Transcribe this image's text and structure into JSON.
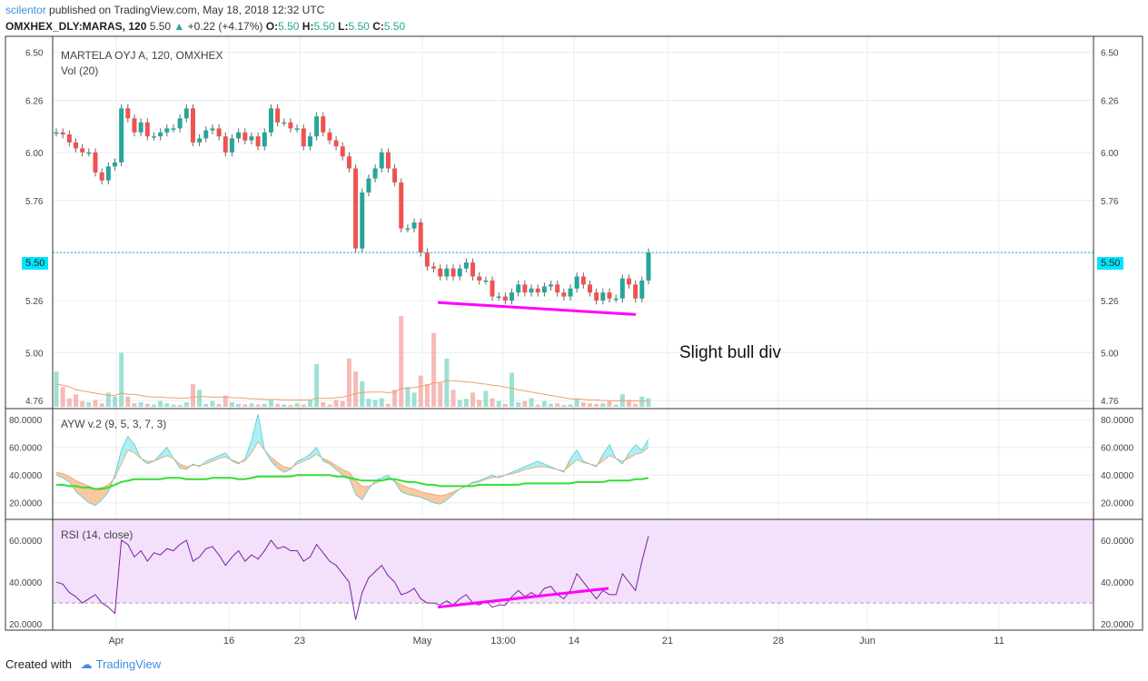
{
  "header": {
    "author": "scilentor",
    "published": "published on TradingView.com, May 18, 2018 12:32 UTC",
    "symbol": "OMXHEX_DLY:MARAS, 120",
    "last": "5.50",
    "change": "+0.22 (+4.17%)",
    "o_label": "O:",
    "o": "5.50",
    "h_label": "H:",
    "h": "5.50",
    "l_label": "L:",
    "l": "5.50",
    "c_label": "C:",
    "c": "5.50"
  },
  "main_pane": {
    "title": "MARTELA OYJ A, 120, OMXHEX",
    "vol_label": "Vol (20)",
    "current_price_tag": "5.50",
    "annotation": "Slight bull div"
  },
  "ayw_pane": {
    "title": "AYW v.2 (9, 5, 3, 7, 3)"
  },
  "rsi_pane": {
    "title": "RSI (14, close)"
  },
  "footer": {
    "created_with": "Created with",
    "brand": "TradingView"
  },
  "colors": {
    "up": "#26a69a",
    "down": "#ef5350",
    "up_fill": "#7fd6c4",
    "down_fill": "#f4a39f",
    "price_line": "#00bcd4",
    "annotation": "#ff00ff",
    "rsi_line": "#7b1fa2",
    "rsi_band": "#f3e0fb",
    "ayw_up_fill": "#aeeef5",
    "ayw_down_fill": "#f8c8a0",
    "ayw_signal": "#33dd33",
    "vol_ma": "#f0a070"
  },
  "chart_data": [
    {
      "type": "candlestick",
      "title": "MARTELA OYJ A, 120, OMXHEX",
      "x_ticks": [
        "Apr",
        "16",
        "23",
        "May",
        "13:00",
        "14",
        "21",
        "28",
        "Jun",
        "11"
      ],
      "y_ticks": [
        "6.50",
        "6.26",
        "6.00",
        "5.76",
        "5.50",
        "5.26",
        "5.00",
        "4.76"
      ],
      "ylim": [
        4.72,
        6.58
      ],
      "last_price": 5.5,
      "close_series": [
        6.1,
        6.09,
        6.05,
        6.02,
        6.0,
        6.0,
        5.9,
        5.86,
        5.93,
        5.95,
        6.22,
        6.17,
        6.1,
        6.15,
        6.08,
        6.08,
        6.1,
        6.12,
        6.12,
        6.17,
        6.22,
        6.05,
        6.07,
        6.11,
        6.12,
        6.08,
        6.0,
        6.07,
        6.1,
        6.06,
        6.08,
        6.03,
        6.1,
        6.22,
        6.15,
        6.15,
        6.12,
        6.12,
        6.03,
        6.08,
        6.18,
        6.1,
        6.06,
        6.03,
        5.98,
        5.92,
        5.52,
        5.8,
        5.87,
        5.92,
        6.0,
        5.92,
        5.85,
        5.62,
        5.62,
        5.65,
        5.5,
        5.43,
        5.42,
        5.38,
        5.42,
        5.38,
        5.42,
        5.45,
        5.38,
        5.36,
        5.36,
        5.28,
        5.28,
        5.26,
        5.3,
        5.34,
        5.3,
        5.32,
        5.3,
        5.33,
        5.34,
        5.3,
        5.28,
        5.32,
        5.38,
        5.34,
        5.3,
        5.26,
        5.3,
        5.27,
        5.27,
        5.37,
        5.34,
        5.27,
        5.36,
        5.5
      ],
      "annotation_line": {
        "from_date": "May 2",
        "from": 5.25,
        "to_date": "May 17",
        "to": 5.19
      }
    },
    {
      "type": "bar",
      "title": "Vol (20)",
      "values": [
        0.62,
        0.35,
        0.15,
        0.22,
        0.1,
        0.08,
        0.12,
        0.06,
        0.25,
        0.18,
        0.95,
        0.18,
        0.06,
        0.08,
        0.05,
        0.04,
        0.1,
        0.06,
        0.04,
        0.03,
        0.08,
        0.4,
        0.3,
        0.05,
        0.1,
        0.05,
        0.2,
        0.08,
        0.05,
        0.04,
        0.06,
        0.04,
        0.05,
        0.12,
        0.05,
        0.04,
        0.03,
        0.06,
        0.04,
        0.12,
        0.75,
        0.08,
        0.04,
        0.12,
        0.1,
        0.85,
        0.62,
        0.45,
        0.14,
        0.12,
        0.15,
        0.05,
        0.3,
        1.6,
        0.35,
        0.25,
        0.55,
        0.4,
        1.3,
        0.42,
        0.85,
        0.3,
        0.12,
        0.14,
        0.25,
        0.12,
        0.28,
        0.15,
        0.1,
        0.05,
        0.6,
        0.08,
        0.1,
        0.15,
        0.04,
        0.1,
        0.05,
        0.06,
        0.03,
        0.04,
        0.14,
        0.08,
        0.06,
        0.05,
        0.06,
        0.1,
        0.04,
        0.22,
        0.12,
        0.05,
        0.18,
        0.15
      ],
      "ma": [
        0.4,
        0.38,
        0.35,
        0.3,
        0.28,
        0.26,
        0.24,
        0.22,
        0.2,
        0.2,
        0.24,
        0.22,
        0.22,
        0.2,
        0.18,
        0.17,
        0.17,
        0.16,
        0.16,
        0.15,
        0.15,
        0.17,
        0.18,
        0.18,
        0.17,
        0.17,
        0.17,
        0.16,
        0.16,
        0.15,
        0.14,
        0.14,
        0.13,
        0.13,
        0.13,
        0.12,
        0.12,
        0.12,
        0.12,
        0.12,
        0.15,
        0.15,
        0.15,
        0.16,
        0.17,
        0.2,
        0.23,
        0.25,
        0.26,
        0.26,
        0.26,
        0.25,
        0.26,
        0.32,
        0.33,
        0.34,
        0.36,
        0.38,
        0.42,
        0.43,
        0.46,
        0.46,
        0.45,
        0.44,
        0.43,
        0.41,
        0.4,
        0.38,
        0.37,
        0.34,
        0.33,
        0.3,
        0.28,
        0.26,
        0.24,
        0.22,
        0.2,
        0.18,
        0.16,
        0.14,
        0.14,
        0.13,
        0.12,
        0.12,
        0.11,
        0.11,
        0.1,
        0.11,
        0.11,
        0.1,
        0.1,
        0.1
      ]
    },
    {
      "type": "area",
      "title": "AYW v.2 (9, 5, 3, 7, 3)",
      "y_ticks": [
        "80.0000",
        "60.0000",
        "40.0000",
        "20.0000"
      ],
      "ylim": [
        8,
        88
      ],
      "series": [
        {
          "values": [
            40,
            38,
            35,
            28,
            24,
            20,
            18,
            22,
            28,
            40,
            58,
            68,
            62,
            52,
            48,
            50,
            55,
            60,
            52,
            45,
            44,
            48,
            46,
            50,
            52,
            54,
            56,
            50,
            48,
            52,
            65,
            84,
            58,
            50,
            45,
            42,
            44,
            50,
            52,
            55,
            60,
            50,
            48,
            44,
            40,
            38,
            26,
            22,
            30,
            36,
            38,
            40,
            35,
            28,
            26,
            25,
            24,
            22,
            20,
            19,
            22,
            26,
            30,
            32,
            35,
            36,
            38,
            40,
            38,
            40,
            42,
            44,
            46,
            48,
            50,
            48,
            46,
            44,
            42,
            52,
            58,
            50,
            48,
            46,
            55,
            62,
            52,
            48,
            56,
            62,
            58,
            66
          ]
        },
        {
          "values": [
            42,
            41,
            39,
            36,
            34,
            32,
            30,
            31,
            33,
            38,
            48,
            58,
            56,
            52,
            50,
            50,
            52,
            54,
            52,
            48,
            46,
            47,
            47,
            48,
            50,
            52,
            53,
            51,
            49,
            50,
            56,
            64,
            58,
            53,
            49,
            46,
            45,
            48,
            50,
            52,
            55,
            52,
            50,
            47,
            44,
            42,
            36,
            32,
            32,
            34,
            36,
            38,
            36,
            33,
            31,
            30,
            28,
            27,
            26,
            25,
            26,
            28,
            30,
            32,
            34,
            35,
            37,
            38,
            39,
            40,
            41,
            42,
            44,
            45,
            46,
            46,
            45,
            44,
            43,
            47,
            51,
            49,
            48,
            47,
            50,
            54,
            52,
            50,
            52,
            55,
            56,
            60
          ]
        },
        {
          "values": [
            33,
            33,
            32,
            32,
            31,
            31,
            30,
            30,
            31,
            33,
            35,
            36,
            37,
            37,
            37,
            37,
            37,
            38,
            38,
            38,
            37,
            37,
            37,
            37,
            38,
            38,
            38,
            38,
            37,
            37,
            38,
            39,
            39,
            39,
            39,
            39,
            39,
            40,
            40,
            40,
            40,
            40,
            40,
            39,
            39,
            38,
            37,
            36,
            36,
            36,
            36,
            37,
            37,
            36,
            35,
            35,
            34,
            33,
            33,
            32,
            32,
            32,
            32,
            32,
            32,
            33,
            33,
            33,
            33,
            33,
            33,
            33,
            34,
            34,
            34,
            34,
            34,
            34,
            34,
            34,
            35,
            35,
            35,
            35,
            35,
            36,
            36,
            36,
            36,
            37,
            37,
            38
          ]
        }
      ]
    },
    {
      "type": "line",
      "title": "RSI (14, close)",
      "y_ticks": [
        "60.0000",
        "40.0000",
        "20.0000"
      ],
      "ylim": [
        17,
        70
      ],
      "band": [
        30,
        70
      ],
      "values": [
        40,
        39,
        35,
        33,
        30,
        32,
        34,
        30,
        28,
        25,
        60,
        58,
        52,
        55,
        50,
        54,
        53,
        56,
        55,
        58,
        60,
        50,
        52,
        56,
        57,
        53,
        48,
        52,
        55,
        50,
        53,
        51,
        55,
        60,
        56,
        57,
        55,
        55,
        50,
        52,
        58,
        54,
        50,
        48,
        44,
        40,
        22,
        35,
        42,
        45,
        48,
        43,
        40,
        34,
        35,
        37,
        32,
        30,
        30,
        29,
        31,
        29,
        32,
        34,
        30,
        29,
        31,
        28,
        29,
        29,
        33,
        36,
        33,
        35,
        33,
        37,
        38,
        34,
        32,
        36,
        44,
        40,
        36,
        32,
        36,
        34,
        34,
        44,
        40,
        36,
        50,
        62
      ],
      "annotation_line": {
        "from_date": "May 2",
        "from": 28,
        "to_date": "May 17",
        "to": 37
      }
    }
  ]
}
